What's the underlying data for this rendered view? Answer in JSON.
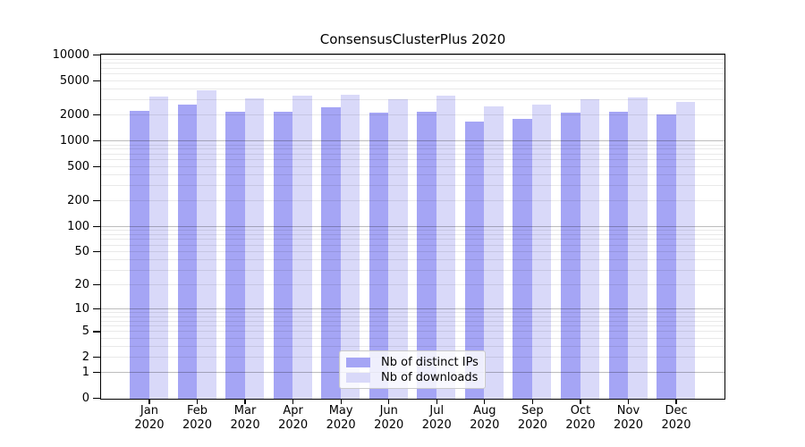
{
  "figure_title": "ConsensusClusterPlus 2020",
  "chart_data": {
    "type": "bar",
    "title": "ConsensusClusterPlus 2020",
    "categories": [
      "Jan 2020",
      "Feb 2020",
      "Mar 2020",
      "Apr 2020",
      "May 2020",
      "Jun 2020",
      "Jul 2020",
      "Aug 2020",
      "Sep 2020",
      "Oct 2020",
      "Nov 2020",
      "Dec 2020"
    ],
    "series": [
      {
        "name": "Nb of distinct IPs",
        "color": "#a5a5f5",
        "values": [
          2240,
          2670,
          2200,
          2220,
          2470,
          2130,
          2220,
          1700,
          1830,
          2170,
          2200,
          2050
        ]
      },
      {
        "name": "Nb of downloads",
        "color": "#d9d9f9",
        "values": [
          3290,
          3930,
          3170,
          3420,
          3480,
          3110,
          3380,
          2570,
          2650,
          3100,
          3240,
          2870
        ]
      }
    ],
    "xlabel": "",
    "ylabel": "",
    "yaxis": {
      "scale": "log1p",
      "tick_values": [
        0,
        1,
        2,
        5,
        10,
        20,
        50,
        100,
        200,
        500,
        1000,
        2000,
        5000,
        10000
      ],
      "tick_labels": [
        "0",
        "1",
        "2",
        "5",
        "10",
        "20",
        "50",
        "100",
        "200",
        "500",
        "1000",
        "2000",
        "5000",
        "10000"
      ],
      "range": [
        0,
        10500
      ]
    },
    "grid": {
      "orientation": "horizontal",
      "major_at": [
        1,
        10,
        100,
        1000,
        10000
      ],
      "minor": "2-9 multiples per decade",
      "drawn_over_bars": true
    },
    "legend_position": "bottom-center",
    "frame": "full box"
  }
}
